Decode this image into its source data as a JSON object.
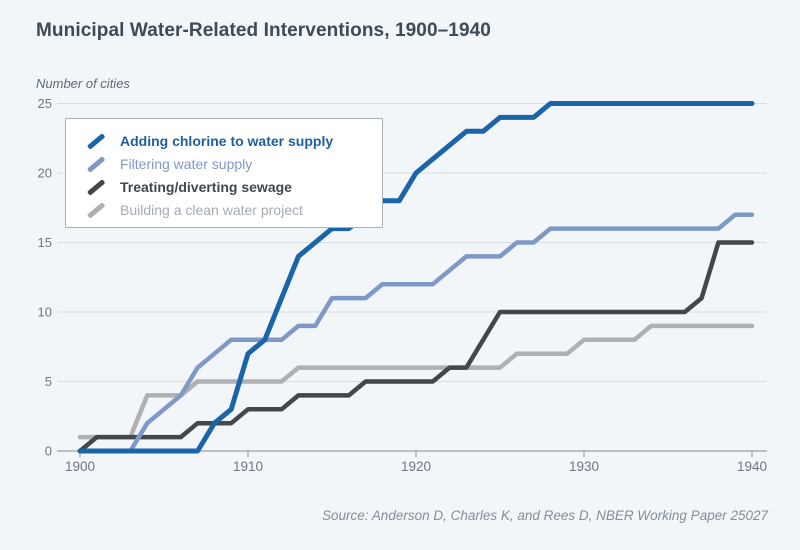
{
  "page": {
    "background": "#f3f6f9"
  },
  "header": {
    "title": "Municipal Water-Related Interventions, 1900–1940"
  },
  "chart_data": {
    "type": "line",
    "title": "Municipal Water-Related Interventions, 1900–1940",
    "ylabel_note": "Number of cities",
    "xlabel": "",
    "ylim": [
      0,
      25
    ],
    "xlim": [
      1900,
      1940
    ],
    "grid": "horizontal",
    "legend_position": "top-left",
    "xticks": [
      1900,
      1910,
      1920,
      1930,
      1940
    ],
    "yticks": [
      0,
      5,
      10,
      15,
      20,
      25
    ],
    "x": [
      1900,
      1901,
      1902,
      1903,
      1904,
      1905,
      1906,
      1907,
      1908,
      1909,
      1910,
      1911,
      1912,
      1913,
      1914,
      1915,
      1916,
      1917,
      1918,
      1919,
      1920,
      1921,
      1922,
      1923,
      1924,
      1925,
      1926,
      1927,
      1928,
      1929,
      1930,
      1931,
      1932,
      1933,
      1934,
      1935,
      1936,
      1937,
      1938,
      1939,
      1940
    ],
    "series": [
      {
        "name": "Adding chlorine to water supply",
        "color": "#1a64a8",
        "text_color": "#1d5f9f",
        "bold": true,
        "stroke_width": 5,
        "values": [
          0,
          0,
          0,
          0,
          0,
          0,
          0,
          0,
          2,
          3,
          7,
          8,
          11,
          14,
          15,
          16,
          16,
          17,
          18,
          18,
          20,
          21,
          22,
          23,
          23,
          24,
          24,
          24,
          25,
          25,
          25,
          25,
          25,
          25,
          25,
          25,
          25,
          25,
          25,
          25,
          25
        ]
      },
      {
        "name": "Filtering water supply",
        "color": "#7e99c8",
        "text_color": "#7e99c8",
        "bold": false,
        "stroke_width": 4.5,
        "values": [
          0,
          0,
          0,
          0,
          2,
          3,
          4,
          6,
          7,
          8,
          8,
          8,
          8,
          9,
          9,
          11,
          11,
          11,
          12,
          12,
          12,
          12,
          13,
          14,
          14,
          14,
          15,
          15,
          16,
          16,
          16,
          16,
          16,
          16,
          16,
          16,
          16,
          16,
          16,
          17,
          17
        ]
      },
      {
        "name": "Treating/diverting sewage",
        "color": "#42474c",
        "text_color": "#42474c",
        "bold": true,
        "stroke_width": 4.5,
        "values": [
          0,
          1,
          1,
          1,
          1,
          1,
          1,
          2,
          2,
          2,
          3,
          3,
          3,
          4,
          4,
          4,
          4,
          5,
          5,
          5,
          5,
          5,
          6,
          6,
          8,
          10,
          10,
          10,
          10,
          10,
          10,
          10,
          10,
          10,
          10,
          10,
          10,
          11,
          15,
          15,
          15
        ]
      },
      {
        "name": "Building a clean water project",
        "color": "#aeb0b3",
        "text_color": "#a6abb0",
        "bold": false,
        "stroke_width": 4.5,
        "values": [
          1,
          1,
          1,
          1,
          4,
          4,
          4,
          5,
          5,
          5,
          5,
          5,
          5,
          6,
          6,
          6,
          6,
          6,
          6,
          6,
          6,
          6,
          6,
          6,
          6,
          6,
          7,
          7,
          7,
          7,
          8,
          8,
          8,
          8,
          9,
          9,
          9,
          9,
          9,
          9,
          9
        ]
      }
    ],
    "colors": {
      "gridline": "#d7dde2",
      "axis_line": "#99a1aa",
      "tick_label": "#6e7781"
    }
  },
  "source": {
    "text": "Source: Anderson D, Charles K, and Rees D, NBER Working Paper 25027"
  }
}
